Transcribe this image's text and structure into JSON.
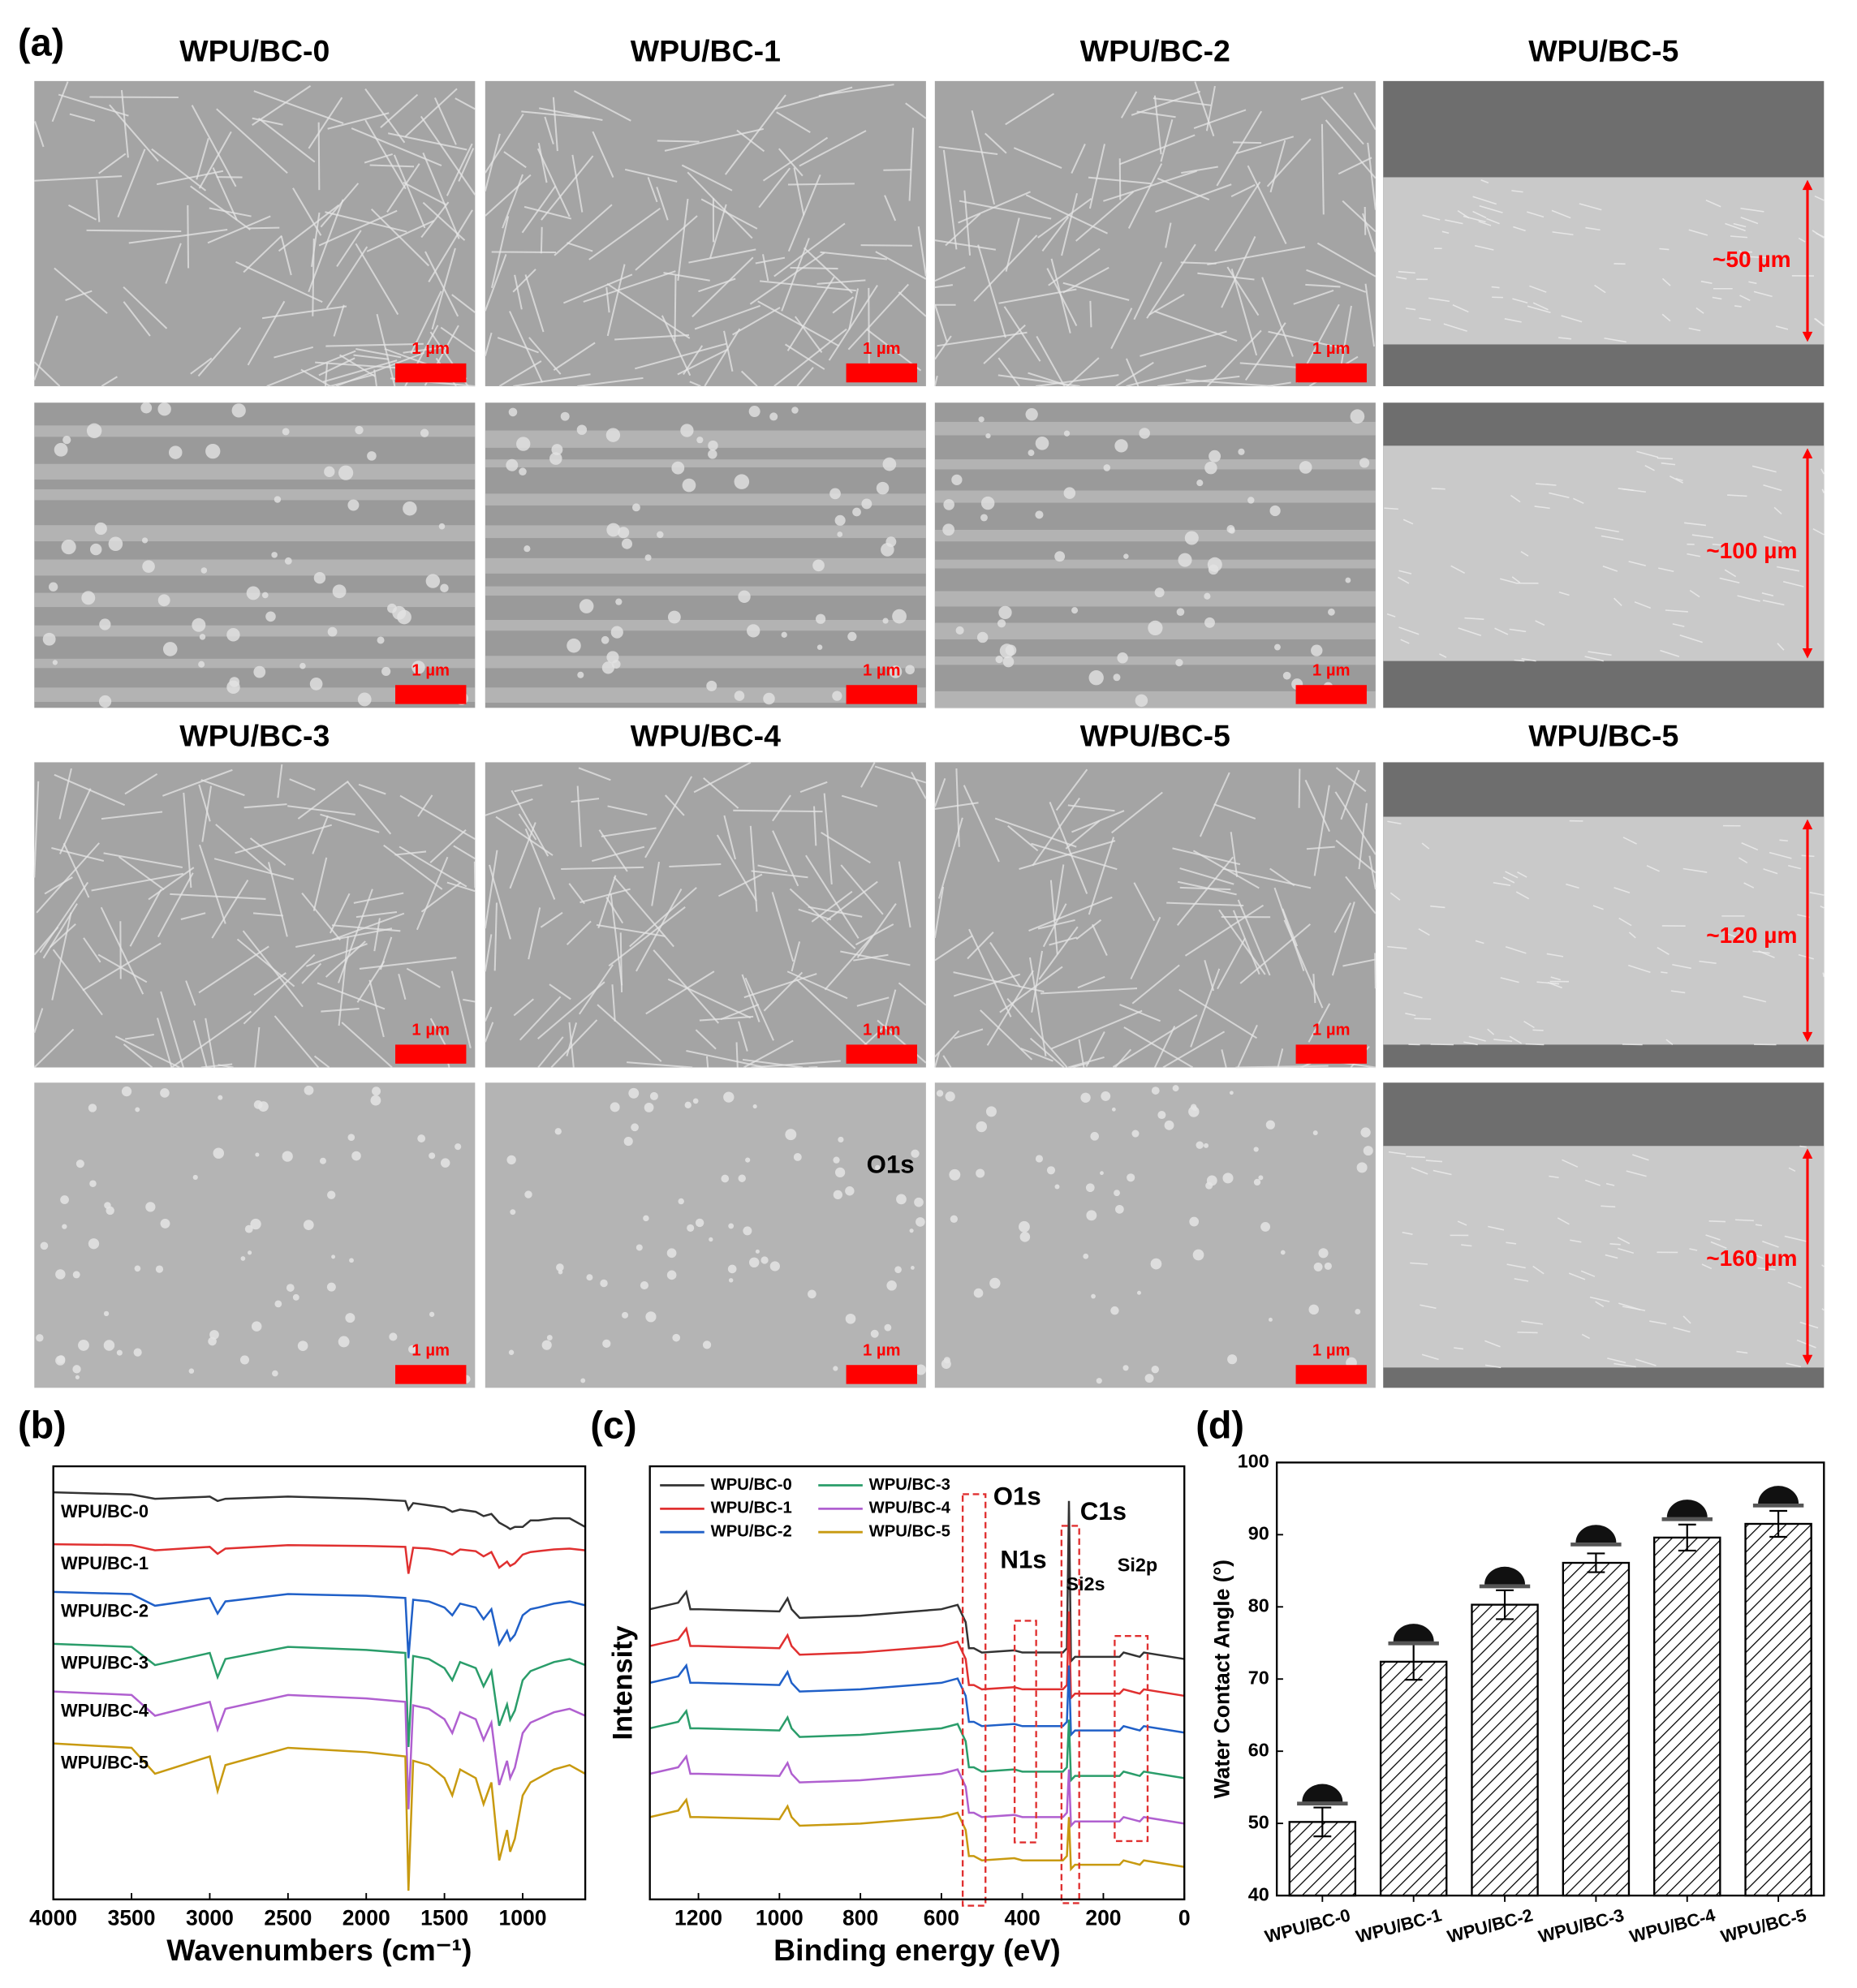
{
  "sem_panel": {
    "panel_label": "(a)",
    "titles": [
      "WPU/BC-0",
      "WPU/BC-1",
      "WPU/BC-2",
      "WPU/BC-5",
      "WPU/BC-3",
      "WPU/BC-4",
      "WPU/BC-5",
      "WPU/BC-5"
    ],
    "scale_bar_labels": [
      "1 µm",
      "1 µm",
      "1 µm",
      "1 µm",
      "1 µm",
      "1 µm",
      "1 µm",
      "1 µm",
      "1 µm",
      "1 µm",
      "1 µm",
      "1 µm"
    ],
    "thickness_labels": [
      "~50 µm",
      "~100 µm",
      "~120 µm",
      "~160 µm"
    ],
    "stray_label": "O1s"
  },
  "chart_data": [
    {
      "type": "line",
      "panel_label": "(b)",
      "x_label": "Wavenumbers (cm⁻¹)",
      "legend": "inline",
      "x": [
        4000,
        3500,
        3350,
        3000,
        2950,
        2900,
        2500,
        2000,
        1750,
        1730,
        1700,
        1600,
        1500,
        1450,
        1400,
        1300,
        1250,
        1200,
        1150,
        1100,
        1080,
        1050,
        1000,
        950,
        900,
        800,
        700,
        600
      ],
      "xlim": [
        4000,
        600
      ],
      "xticks": [
        4000,
        3500,
        3000,
        2500,
        2000,
        1500,
        1000
      ],
      "ylim": [
        0,
        100
      ],
      "series": [
        {
          "name": "WPU/BC-0",
          "color": "#333333",
          "values": [
            94,
            93.5,
            92.5,
            93,
            92,
            92.5,
            93,
            92.5,
            92,
            90,
            91.5,
            91,
            90.5,
            89.5,
            90,
            89.5,
            88.5,
            89,
            87,
            86,
            85.5,
            86,
            86,
            87.5,
            87.5,
            88,
            88,
            86
          ]
        },
        {
          "name": "WPU/BC-1",
          "color": "#e03030",
          "values": [
            82,
            81.8,
            80.6,
            81.4,
            79.8,
            81,
            81.8,
            81.6,
            81.4,
            75.2,
            81.2,
            81,
            80.4,
            79.6,
            80.8,
            80.4,
            79.2,
            80.2,
            76.6,
            78,
            77,
            77.6,
            79.6,
            80.2,
            80.4,
            80.8,
            81,
            80.6
          ]
        },
        {
          "name": "WPU/BC-2",
          "color": "#2060c8",
          "values": [
            71,
            70.5,
            67.8,
            69.6,
            66,
            68.8,
            70.5,
            70.1,
            69.6,
            55.7,
            69.2,
            68.8,
            67.4,
            65.6,
            68.3,
            67.4,
            64.7,
            67,
            58.9,
            62,
            59.8,
            61.1,
            65.6,
            67,
            67.4,
            68.3,
            68.8,
            67.9
          ]
        },
        {
          "name": "WPU/BC-3",
          "color": "#2a9d6a",
          "values": [
            59,
            58.3,
            54.1,
            56.9,
            51.3,
            55.5,
            58.3,
            57.6,
            56.9,
            35.2,
            56.2,
            55.5,
            53.4,
            50.6,
            54.8,
            53.4,
            49.2,
            52.7,
            40.1,
            45,
            41.5,
            43.6,
            50.6,
            52.7,
            53.4,
            54.8,
            55.5,
            54.1
          ]
        },
        {
          "name": "WPU/BC-4",
          "color": "#b060d0",
          "values": [
            48,
            47.2,
            42.4,
            45.6,
            39.2,
            44,
            47.2,
            46.4,
            45.6,
            20.8,
            44.8,
            44,
            41.6,
            38.4,
            43.2,
            41.6,
            36.8,
            40.8,
            26.4,
            32,
            28,
            30.4,
            38.4,
            40.8,
            41.6,
            43.2,
            44,
            42.4
          ]
        },
        {
          "name": "WPU/BC-5",
          "color": "#c89a10",
          "values": [
            36,
            35,
            29,
            33,
            25,
            31,
            35,
            34,
            33,
            2,
            32,
            31,
            28,
            24,
            30,
            28,
            22,
            27,
            9,
            16,
            11,
            14,
            24,
            27,
            28,
            30,
            31,
            29
          ]
        }
      ]
    },
    {
      "type": "line",
      "panel_label": "(c)",
      "x_label": "Binding energy (eV)",
      "y_label": "Intensity",
      "legend": "upper-left",
      "annotations": [
        "O1s",
        "C1s",
        "N1s",
        "Si2s",
        "Si2p"
      ],
      "x": [
        1320,
        1250,
        1230,
        1220,
        1200,
        1000,
        980,
        970,
        950,
        800,
        600,
        560,
        540,
        532,
        520,
        500,
        420,
        400,
        300,
        290,
        285,
        280,
        270,
        250,
        160,
        150,
        110,
        100,
        0
      ],
      "xlim": [
        1320,
        0
      ],
      "xticks": [
        1200,
        1000,
        800,
        600,
        400,
        200,
        0
      ],
      "ylim": [
        0,
        100
      ],
      "series": [
        {
          "name": "WPU/BC-0",
          "color": "#333333",
          "values": [
            67,
            68.5,
            71,
            67,
            67,
            66.5,
            69.5,
            67,
            65,
            65.5,
            67,
            68,
            64,
            58,
            58,
            57,
            57.5,
            57,
            57,
            58,
            92,
            55,
            56,
            56,
            56,
            57,
            56,
            57,
            55.5
          ]
        },
        {
          "name": "WPU/BC-1",
          "color": "#e03030",
          "values": [
            58.5,
            60,
            62.5,
            58.5,
            58.5,
            58,
            61,
            58.5,
            56.5,
            57,
            58.5,
            59.5,
            55.5,
            49.5,
            49.5,
            48.5,
            49,
            48.5,
            48.5,
            49.5,
            66.5,
            46.5,
            47.5,
            47.5,
            47.5,
            48.5,
            47.5,
            48.5,
            47
          ]
        },
        {
          "name": "WPU/BC-2",
          "color": "#2060c8",
          "values": [
            50,
            51.5,
            54,
            50,
            50,
            49.5,
            52.5,
            50,
            48,
            48.5,
            50,
            51,
            47,
            41,
            41,
            40,
            40.5,
            40,
            40,
            41,
            54,
            38,
            39,
            39,
            39,
            40,
            39,
            40,
            38.5
          ]
        },
        {
          "name": "WPU/BC-3",
          "color": "#2a9d6a",
          "values": [
            39.5,
            41,
            43.5,
            39.5,
            39.5,
            39,
            42,
            39.5,
            37.5,
            38,
            39.5,
            40.5,
            36.5,
            30.5,
            30.5,
            29.5,
            30,
            29.5,
            29.5,
            30.5,
            41.5,
            27.5,
            28.5,
            28.5,
            28.5,
            29.5,
            28.5,
            29.5,
            28
          ]
        },
        {
          "name": "WPU/BC-4",
          "color": "#b060d0",
          "values": [
            29,
            30.5,
            33,
            29,
            29,
            28.5,
            31.5,
            29,
            27,
            27.5,
            29,
            30,
            26,
            20,
            20,
            19,
            19.5,
            19,
            19,
            20,
            30,
            17,
            18,
            18,
            18,
            19,
            18,
            19,
            17.5
          ]
        },
        {
          "name": "WPU/BC-5",
          "color": "#c89a10",
          "values": [
            19,
            20.5,
            23,
            19,
            19,
            18.5,
            21.5,
            19,
            17,
            17.5,
            19,
            20,
            16,
            10,
            10,
            9,
            9.5,
            9,
            9,
            10,
            19,
            7,
            8,
            8,
            8,
            9,
            8,
            9,
            7.5
          ]
        }
      ]
    },
    {
      "type": "bar",
      "panel_label": "(d)",
      "y_label": "Water Contact Angle (°)",
      "categories": [
        "WPU/BC-0",
        "WPU/BC-1",
        "WPU/BC-2",
        "WPU/BC-3",
        "WPU/BC-4",
        "WPU/BC-5"
      ],
      "values": [
        50.2,
        72.4,
        80.3,
        86.1,
        89.6,
        91.5
      ],
      "errors": [
        2.0,
        2.5,
        2.0,
        1.3,
        1.8,
        1.8
      ],
      "color": "#000000",
      "ylim": [
        40,
        100
      ],
      "yticks": [
        40,
        50,
        60,
        70,
        80,
        90,
        100
      ]
    }
  ]
}
